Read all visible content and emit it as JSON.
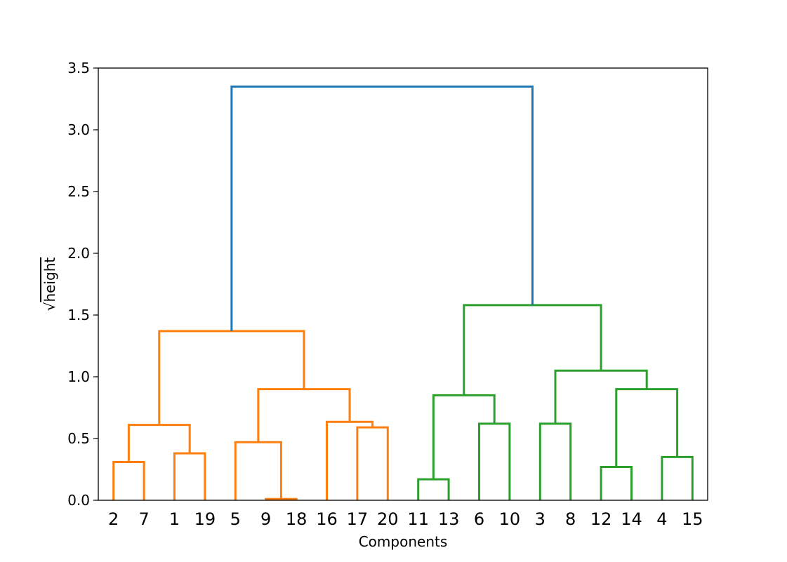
{
  "chart_data": {
    "type": "dendrogram",
    "xlabel": "Components",
    "ylabel": "height",
    "ylabel_prefix": "√",
    "ylim": [
      0,
      3.5
    ],
    "yticks": [
      "0.0",
      "0.5",
      "1.0",
      "1.5",
      "2.0",
      "2.5",
      "3.0",
      "3.5"
    ],
    "leaves": [
      "2",
      "7",
      "1",
      "19",
      "5",
      "9",
      "18",
      "16",
      "17",
      "20",
      "11",
      "13",
      "6",
      "10",
      "3",
      "8",
      "12",
      "14",
      "4",
      "15"
    ],
    "colors": {
      "orange": "#ff7f0e",
      "green": "#2ca02c",
      "blue": "#1f77b4"
    },
    "merges": [
      {
        "left": 0,
        "right": 1,
        "height": 0.31,
        "color": "orange"
      },
      {
        "left": 2,
        "right": 3,
        "height": 0.38,
        "color": "orange"
      },
      {
        "left": "m0",
        "right": "m1",
        "height": 0.61,
        "color": "orange"
      },
      {
        "left": 5,
        "right": 6,
        "height": 0.01,
        "color": "orange"
      },
      {
        "left": 4,
        "right": "m3",
        "height": 0.47,
        "color": "orange"
      },
      {
        "left": 8,
        "right": 9,
        "height": 0.59,
        "color": "orange"
      },
      {
        "left": 7,
        "right": "m5",
        "height": 0.635,
        "color": "orange"
      },
      {
        "left": "m4",
        "right": "m6",
        "height": 0.9,
        "color": "orange"
      },
      {
        "left": "m2",
        "right": "m7",
        "height": 1.37,
        "color": "orange"
      },
      {
        "left": 10,
        "right": 11,
        "height": 0.17,
        "color": "green"
      },
      {
        "left": 12,
        "right": 13,
        "height": 0.62,
        "color": "green"
      },
      {
        "left": "m9",
        "right": "m10",
        "height": 0.85,
        "color": "green"
      },
      {
        "left": 14,
        "right": 15,
        "height": 0.62,
        "color": "green"
      },
      {
        "left": 16,
        "right": 17,
        "height": 0.27,
        "color": "green"
      },
      {
        "left": 18,
        "right": 19,
        "height": 0.35,
        "color": "green"
      },
      {
        "left": "m13",
        "right": "m14",
        "height": 0.9,
        "color": "green"
      },
      {
        "left": "m12",
        "right": "m15",
        "height": 1.05,
        "color": "green"
      },
      {
        "left": "m11",
        "right": "m16",
        "height": 1.58,
        "color": "green"
      },
      {
        "left": "m8",
        "right": "m17",
        "height": 3.35,
        "color": "blue"
      }
    ],
    "grid": false,
    "legend": "none"
  }
}
